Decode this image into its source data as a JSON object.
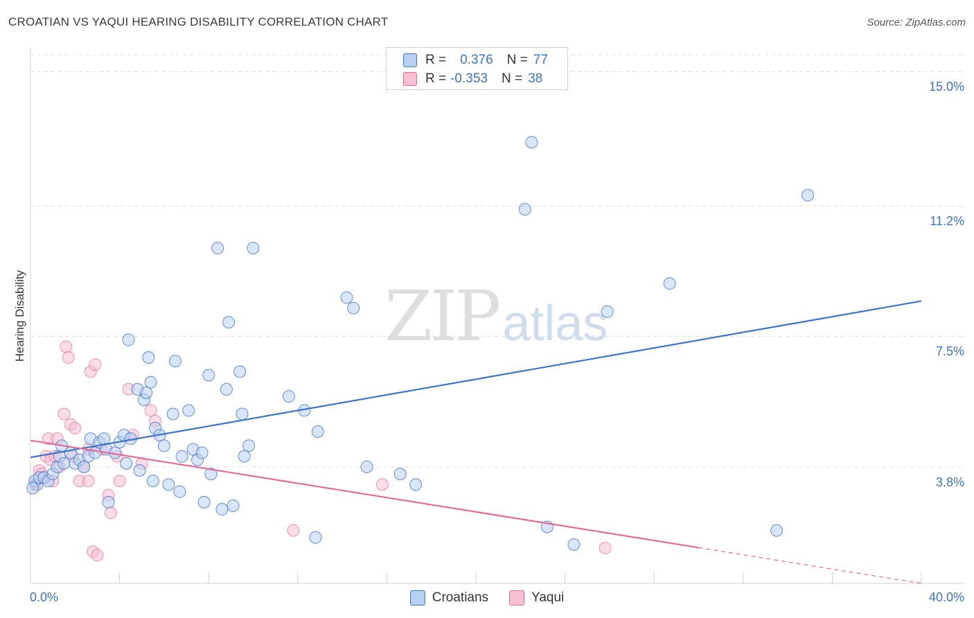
{
  "title": "CROATIAN VS YAQUI HEARING DISABILITY CORRELATION CHART",
  "source": "Source: ZipAtlas.com",
  "watermark": {
    "zip": "ZIP",
    "atlas": "atlas"
  },
  "colors": {
    "croatians": "#3b73c9",
    "croatians_fill": "#b9d0f2",
    "yaqui": "#e46a96",
    "yaqui_fill": "#f7c0d3",
    "grid": "#dddddd",
    "tick_text": "#3b73c9"
  },
  "legend_top": {
    "rows": [
      {
        "series": "Croatians",
        "r_label": "R =",
        "r_value": "0.376",
        "n_label": "N =",
        "n_value": "77"
      },
      {
        "series": "Yaqui",
        "r_label": "R =",
        "r_value": "-0.353",
        "n_label": "N =",
        "n_value": "38"
      }
    ]
  },
  "legend_bottom": [
    {
      "label": "Croatians"
    },
    {
      "label": "Yaqui"
    }
  ],
  "chart_data": {
    "type": "scatter",
    "title": "CROATIAN VS YAQUI HEARING DISABILITY CORRELATION CHART",
    "xlabel": "",
    "ylabel": "Hearing Disability",
    "xlim": [
      0,
      40
    ],
    "ylim": [
      0.5,
      15.5
    ],
    "x_tick_labels": [
      "0.0%",
      "40.0%"
    ],
    "y_ticks": [
      3.8,
      7.5,
      11.2,
      15.0
    ],
    "y_tick_labels": [
      "3.8%",
      "7.5%",
      "11.2%",
      "15.0%"
    ],
    "grid": true,
    "series": [
      {
        "name": "Croatians",
        "trend": {
          "x": [
            0,
            40
          ],
          "y": [
            4.07,
            8.5
          ]
        },
        "points": [
          [
            0.3,
            3.3
          ],
          [
            0.2,
            3.4
          ],
          [
            0.4,
            3.5
          ],
          [
            0.6,
            3.5
          ],
          [
            0.8,
            3.4
          ],
          [
            1.0,
            3.6
          ],
          [
            1.2,
            3.8
          ],
          [
            1.3,
            4.1
          ],
          [
            1.4,
            4.4
          ],
          [
            1.5,
            3.9
          ],
          [
            1.8,
            4.2
          ],
          [
            2.0,
            3.9
          ],
          [
            2.2,
            4.0
          ],
          [
            2.4,
            3.8
          ],
          [
            2.6,
            4.1
          ],
          [
            2.7,
            4.6
          ],
          [
            2.9,
            4.2
          ],
          [
            3.1,
            4.5
          ],
          [
            3.3,
            4.6
          ],
          [
            3.4,
            4.3
          ],
          [
            3.5,
            2.8
          ],
          [
            3.8,
            4.2
          ],
          [
            4.0,
            4.5
          ],
          [
            4.2,
            4.7
          ],
          [
            4.3,
            3.9
          ],
          [
            4.4,
            7.4
          ],
          [
            4.5,
            4.6
          ],
          [
            4.8,
            6.0
          ],
          [
            4.9,
            3.7
          ],
          [
            5.1,
            5.7
          ],
          [
            5.2,
            5.9
          ],
          [
            5.3,
            6.9
          ],
          [
            5.4,
            6.2
          ],
          [
            5.5,
            3.4
          ],
          [
            5.6,
            4.9
          ],
          [
            5.8,
            4.7
          ],
          [
            6.0,
            4.4
          ],
          [
            6.2,
            3.3
          ],
          [
            6.4,
            5.3
          ],
          [
            6.5,
            6.8
          ],
          [
            6.7,
            3.1
          ],
          [
            6.8,
            4.1
          ],
          [
            7.1,
            5.4
          ],
          [
            7.3,
            4.3
          ],
          [
            7.5,
            4.0
          ],
          [
            7.7,
            4.2
          ],
          [
            7.8,
            2.8
          ],
          [
            8.0,
            6.4
          ],
          [
            8.1,
            3.6
          ],
          [
            8.4,
            10.0
          ],
          [
            8.6,
            2.6
          ],
          [
            8.8,
            6.0
          ],
          [
            8.9,
            7.9
          ],
          [
            9.1,
            2.7
          ],
          [
            9.4,
            6.5
          ],
          [
            9.5,
            5.3
          ],
          [
            9.6,
            4.1
          ],
          [
            9.8,
            4.4
          ],
          [
            10.0,
            10.0
          ],
          [
            11.6,
            5.8
          ],
          [
            12.3,
            5.4
          ],
          [
            12.8,
            1.8
          ],
          [
            12.9,
            4.8
          ],
          [
            14.2,
            8.6
          ],
          [
            14.5,
            8.3
          ],
          [
            15.1,
            3.8
          ],
          [
            16.6,
            3.6
          ],
          [
            17.3,
            3.3
          ],
          [
            22.2,
            11.1
          ],
          [
            22.5,
            13.0
          ],
          [
            23.2,
            2.1
          ],
          [
            24.4,
            1.6
          ],
          [
            25.9,
            8.2
          ],
          [
            28.7,
            9.0
          ],
          [
            33.5,
            2.0
          ],
          [
            34.9,
            11.5
          ],
          [
            0.1,
            3.2
          ]
        ]
      },
      {
        "name": "Yaqui",
        "trend": {
          "x": [
            0,
            40
          ],
          "y": [
            4.55,
            0.5
          ]
        },
        "trend_solid_until_x": 30,
        "points": [
          [
            0.2,
            3.3
          ],
          [
            0.4,
            3.7
          ],
          [
            0.5,
            3.6
          ],
          [
            0.6,
            3.5
          ],
          [
            0.7,
            4.1
          ],
          [
            0.8,
            4.6
          ],
          [
            0.9,
            4.0
          ],
          [
            1.0,
            3.4
          ],
          [
            1.1,
            4.1
          ],
          [
            1.2,
            4.6
          ],
          [
            1.3,
            3.8
          ],
          [
            1.5,
            5.3
          ],
          [
            1.6,
            7.2
          ],
          [
            1.7,
            6.9
          ],
          [
            1.8,
            5.0
          ],
          [
            1.9,
            4.1
          ],
          [
            2.0,
            4.9
          ],
          [
            2.2,
            3.4
          ],
          [
            2.4,
            3.8
          ],
          [
            2.6,
            3.4
          ],
          [
            2.6,
            4.3
          ],
          [
            2.7,
            6.5
          ],
          [
            2.8,
            1.4
          ],
          [
            2.9,
            6.7
          ],
          [
            3.0,
            1.3
          ],
          [
            3.2,
            4.3
          ],
          [
            3.5,
            3.0
          ],
          [
            3.6,
            2.5
          ],
          [
            3.9,
            4.1
          ],
          [
            4.0,
            3.4
          ],
          [
            4.4,
            6.0
          ],
          [
            4.6,
            4.7
          ],
          [
            5.0,
            3.9
          ],
          [
            5.4,
            5.4
          ],
          [
            5.6,
            5.1
          ],
          [
            11.8,
            2.0
          ],
          [
            15.8,
            3.3
          ],
          [
            25.8,
            1.5
          ]
        ]
      }
    ]
  }
}
